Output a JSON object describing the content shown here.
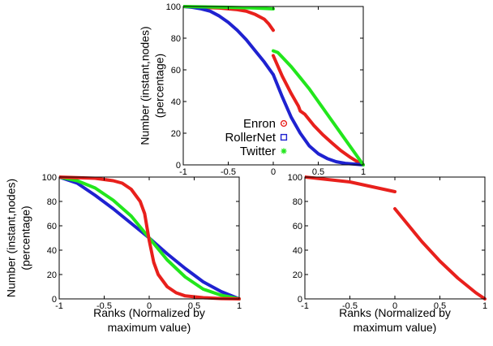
{
  "chart_data": [
    {
      "id": "top",
      "type": "scatter",
      "xlim": [
        -1,
        1
      ],
      "ylim": [
        0,
        100
      ],
      "x_ticks": [
        "-1",
        "-0.5",
        "0",
        "0.5",
        "1"
      ],
      "y_ticks": [
        "0",
        "20",
        "40",
        "60",
        "80",
        "100"
      ],
      "ylabel_lines": [
        "Number (instant,nodes)",
        "(percentage)"
      ],
      "xlabel_lines": [],
      "legend": {
        "placement": "lower-left inside plot"
      },
      "series": [
        {
          "name": "Enron",
          "color": "#e8201c",
          "marker": "circle",
          "segments": [
            [
              [
                -1,
                100
              ],
              [
                -0.8,
                99.5
              ],
              [
                -0.6,
                99
              ],
              [
                -0.4,
                98
              ],
              [
                -0.3,
                97
              ],
              [
                -0.2,
                95
              ],
              [
                -0.1,
                92
              ],
              [
                -0.05,
                89
              ],
              [
                0,
                85
              ]
            ],
            [
              [
                0,
                69
              ],
              [
                0.1,
                56
              ],
              [
                0.2,
                45
              ],
              [
                0.28,
                37
              ],
              [
                0.3,
                34
              ],
              [
                0.35,
                32
              ],
              [
                0.45,
                25
              ],
              [
                0.55,
                19
              ],
              [
                0.65,
                14
              ],
              [
                0.75,
                9
              ],
              [
                0.85,
                5
              ],
              [
                0.95,
                1.5
              ],
              [
                1,
                0
              ]
            ]
          ]
        },
        {
          "name": "RollerNet",
          "color": "#1f22d0",
          "marker": "square",
          "segments": [
            [
              [
                -1,
                100
              ],
              [
                -0.9,
                99.5
              ],
              [
                -0.8,
                98.5
              ],
              [
                -0.7,
                97
              ],
              [
                -0.6,
                94
              ],
              [
                -0.5,
                90
              ],
              [
                -0.4,
                85
              ],
              [
                -0.3,
                79
              ],
              [
                -0.2,
                72
              ],
              [
                -0.1,
                65
              ],
              [
                0,
                57
              ]
            ],
            [
              [
                0,
                57
              ],
              [
                0.1,
                43
              ],
              [
                0.2,
                30
              ],
              [
                0.3,
                20
              ],
              [
                0.4,
                12
              ],
              [
                0.5,
                7
              ],
              [
                0.6,
                4
              ],
              [
                0.7,
                2
              ],
              [
                0.8,
                1
              ],
              [
                0.9,
                0.5
              ],
              [
                1,
                0
              ]
            ]
          ]
        },
        {
          "name": "Twitter",
          "color": "#22e61c",
          "marker": "star",
          "segments": [
            [
              [
                -1,
                100
              ],
              [
                -0.5,
                99.5
              ],
              [
                -0.2,
                99
              ],
              [
                0,
                98.5
              ]
            ],
            [
              [
                0,
                72
              ],
              [
                0.05,
                71
              ],
              [
                0.1,
                68
              ],
              [
                0.2,
                62
              ],
              [
                0.3,
                55
              ],
              [
                0.4,
                48
              ],
              [
                0.5,
                40
              ],
              [
                0.6,
                32
              ],
              [
                0.7,
                24
              ],
              [
                0.8,
                16
              ],
              [
                0.9,
                8
              ],
              [
                1,
                0
              ]
            ]
          ]
        }
      ]
    },
    {
      "id": "bottom-left",
      "type": "scatter",
      "xlim": [
        -1,
        1
      ],
      "ylim": [
        0,
        100
      ],
      "x_ticks": [
        "-1",
        "-0.5",
        "0",
        "0.5",
        "1"
      ],
      "y_ticks": [
        "0",
        "20",
        "40",
        "60",
        "80",
        "100"
      ],
      "ylabel_lines": [
        "Number (instant,nodes)",
        "(percentage)"
      ],
      "xlabel_lines": [
        "Ranks (Normalized by",
        "maximum value)"
      ],
      "series": [
        {
          "name": "",
          "color": "#1f22d0",
          "segments": [
            [
              [
                -1,
                100
              ],
              [
                -0.8,
                95
              ],
              [
                -0.6,
                85
              ],
              [
                -0.4,
                74
              ],
              [
                -0.2,
                62
              ],
              [
                0,
                50
              ],
              [
                0.2,
                37
              ],
              [
                0.4,
                25
              ],
              [
                0.6,
                14
              ],
              [
                0.8,
                6
              ],
              [
                0.9,
                3
              ],
              [
                1,
                0
              ]
            ]
          ]
        },
        {
          "name": "",
          "color": "#22e61c",
          "segments": [
            [
              [
                -1,
                100
              ],
              [
                -0.8,
                97
              ],
              [
                -0.6,
                91
              ],
              [
                -0.4,
                81
              ],
              [
                -0.2,
                68
              ],
              [
                0,
                50
              ],
              [
                0.2,
                32
              ],
              [
                0.4,
                18
              ],
              [
                0.6,
                8
              ],
              [
                0.8,
                3
              ],
              [
                1,
                0
              ]
            ]
          ]
        },
        {
          "name": "",
          "color": "#e8201c",
          "segments": [
            [
              [
                -1,
                100
              ],
              [
                -0.8,
                99.5
              ],
              [
                -0.6,
                99
              ],
              [
                -0.4,
                97
              ],
              [
                -0.3,
                95
              ],
              [
                -0.2,
                90
              ],
              [
                -0.1,
                80
              ],
              [
                -0.05,
                70
              ],
              [
                0,
                48
              ],
              [
                0.05,
                30
              ],
              [
                0.1,
                20
              ],
              [
                0.2,
                10
              ],
              [
                0.3,
                5
              ],
              [
                0.4,
                2.5
              ],
              [
                0.6,
                1
              ],
              [
                0.8,
                0.3
              ],
              [
                1,
                0
              ]
            ]
          ]
        }
      ]
    },
    {
      "id": "bottom-right",
      "type": "scatter",
      "xlim": [
        -1,
        1
      ],
      "ylim": [
        0,
        100
      ],
      "x_ticks": [
        "-1",
        "-0.5",
        "0",
        "0.5",
        "1"
      ],
      "y_ticks": [
        "0",
        "20",
        "40",
        "60",
        "80",
        "100"
      ],
      "ylabel_lines": [],
      "xlabel_lines": [
        "Ranks (Normalized by",
        "maximum value)"
      ],
      "series": [
        {
          "name": "",
          "color": "#e8201c",
          "segments": [
            [
              [
                -1,
                100
              ],
              [
                -0.5,
                96
              ],
              [
                0,
                88
              ]
            ],
            [
              [
                0,
                74
              ],
              [
                0.1,
                65
              ],
              [
                0.2,
                56
              ],
              [
                0.3,
                47
              ],
              [
                0.4,
                39
              ],
              [
                0.5,
                31
              ],
              [
                0.6,
                24
              ],
              [
                0.7,
                17
              ],
              [
                0.8,
                11
              ],
              [
                0.9,
                5
              ],
              [
                1,
                0
              ]
            ]
          ]
        }
      ]
    }
  ]
}
